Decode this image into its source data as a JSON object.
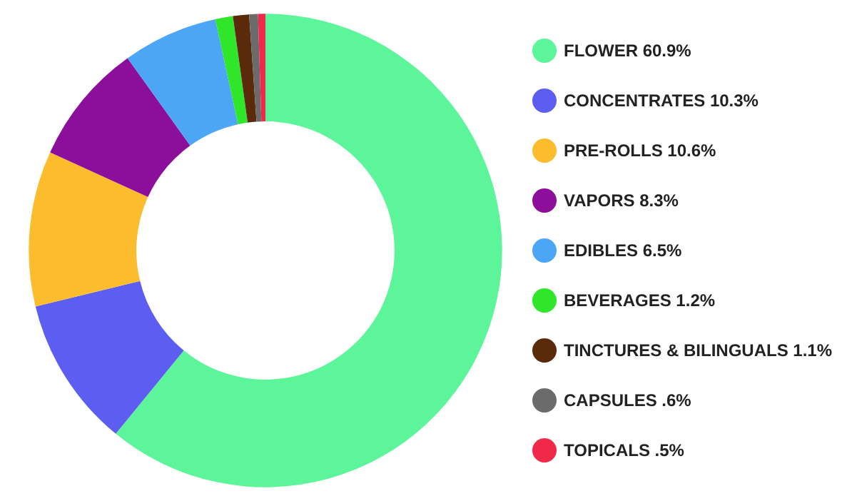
{
  "chart_data": {
    "type": "donut",
    "categories": [
      "FLOWER",
      "CONCENTRATES",
      "PRE-ROLLS",
      "VAPORS",
      "EDIBLES",
      "BEVERAGES",
      "TINCTURES & BILINGUALS",
      "CAPSULES",
      "TOPICALS"
    ],
    "values": [
      60.9,
      10.3,
      10.6,
      8.3,
      6.5,
      1.2,
      1.1,
      0.6,
      0.5
    ],
    "value_labels": [
      "60.9%",
      "10.3%",
      "10.6%",
      "8.3%",
      "6.5%",
      "1.2%",
      "1.1%",
      ".6%",
      ".5%"
    ],
    "colors": [
      "#5cf59a",
      "#5b5ef0",
      "#fbbd2e",
      "#8b0f9a",
      "#4da6f5",
      "#2fe62a",
      "#5a2a0a",
      "#6b6b6b",
      "#f0284a"
    ],
    "legend": "right"
  }
}
